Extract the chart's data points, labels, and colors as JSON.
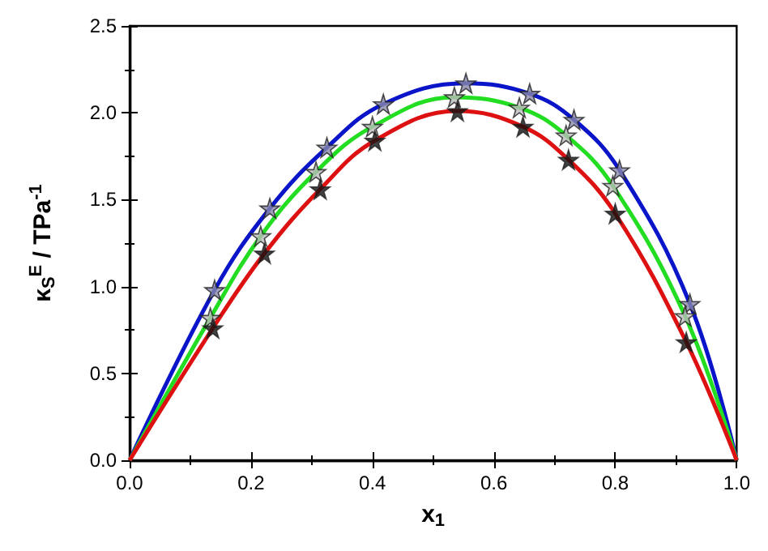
{
  "chart_data": {
    "type": "line",
    "xlabel": "x$_{1}$",
    "ylabel": "κ$_{S}$$^{E}$ / TPa$^{-1}$",
    "xlim": [
      0,
      1
    ],
    "ylim": [
      0,
      2.5
    ],
    "xticks": [
      {
        "value": 0,
        "label": "0.0"
      },
      {
        "value": 0.2,
        "label": "0.2"
      },
      {
        "value": 0.4,
        "label": "0.4"
      },
      {
        "value": 0.6,
        "label": "0.6"
      },
      {
        "value": 0.8,
        "label": "0.8"
      },
      {
        "value": 1,
        "label": "1.0"
      }
    ],
    "yticks": [
      {
        "value": 0,
        "label": "0.0"
      },
      {
        "value": 0.5,
        "label": "0.5"
      },
      {
        "value": 1,
        "label": "1.0"
      },
      {
        "value": 1.5,
        "label": "1.5"
      },
      {
        "value": 2,
        "label": "2.0"
      },
      {
        "value": 2.5,
        "label": "2.5"
      }
    ],
    "grid": false,
    "series": [
      {
        "color": "#0a14c8",
        "marker": "none",
        "x": [
          0,
          0.14,
          0.231,
          0.325,
          0.418,
          0.554,
          0.659,
          0.732,
          0.807,
          0.923,
          1
        ],
        "values": [
          0,
          0.98,
          1.45,
          1.8,
          2.05,
          2.17,
          2.11,
          1.96,
          1.67,
          0.9,
          0
        ]
      },
      {
        "color": "#22dd22",
        "marker": "none",
        "x": [
          0,
          0.133,
          0.216,
          0.307,
          0.4,
          0.535,
          0.642,
          0.719,
          0.796,
          0.915,
          1
        ],
        "values": [
          0,
          0.82,
          1.29,
          1.66,
          1.92,
          2.09,
          2.03,
          1.87,
          1.58,
          0.83,
          0
        ]
      },
      {
        "color": "#dd1111",
        "marker": "none",
        "x": [
          0,
          0.137,
          0.222,
          0.314,
          0.404,
          0.54,
          0.648,
          0.723,
          0.8,
          0.917,
          1
        ],
        "values": [
          0,
          0.76,
          1.19,
          1.56,
          1.84,
          2.01,
          1.92,
          1.73,
          1.42,
          0.68,
          0
        ]
      },
      {
        "type": "scatter",
        "color": "#8888aa",
        "marker": "star",
        "x": [
          0.14,
          0.231,
          0.325,
          0.418,
          0.554,
          0.659,
          0.732,
          0.807,
          0.923
        ],
        "values": [
          0.98,
          1.45,
          1.8,
          2.05,
          2.17,
          2.11,
          1.96,
          1.67,
          0.9
        ]
      },
      {
        "type": "scatter",
        "color": "#bbbbbb",
        "marker": "star",
        "x": [
          0.133,
          0.216,
          0.307,
          0.4,
          0.535,
          0.642,
          0.719,
          0.796,
          0.915
        ],
        "values": [
          0.82,
          1.29,
          1.66,
          1.92,
          2.09,
          2.03,
          1.87,
          1.58,
          0.83
        ]
      },
      {
        "type": "scatter",
        "color": "#111111",
        "marker": "star",
        "x": [
          0.137,
          0.222,
          0.314,
          0.404,
          0.54,
          0.648,
          0.723,
          0.8,
          0.917
        ],
        "values": [
          0.76,
          1.19,
          1.56,
          1.84,
          2.01,
          1.92,
          1.73,
          1.42,
          0.68
        ]
      }
    ]
  }
}
